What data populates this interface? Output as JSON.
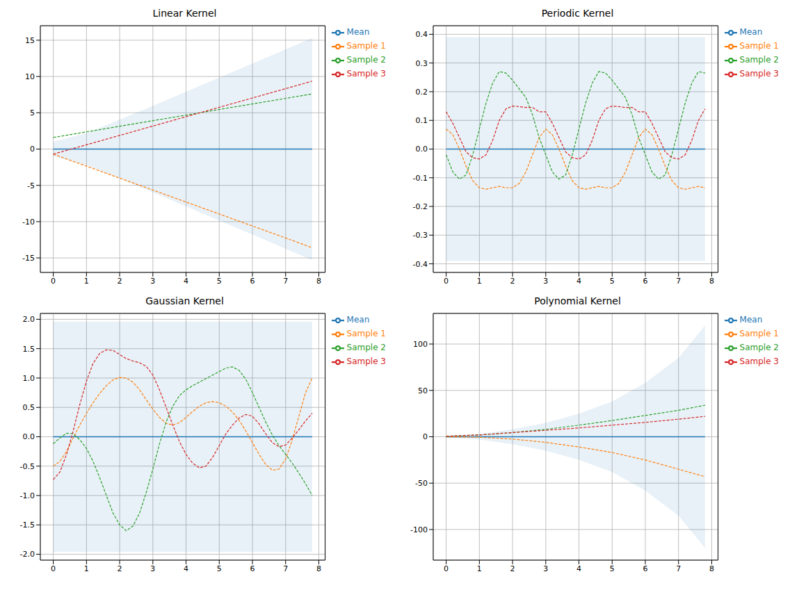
{
  "chart_data": [
    {
      "type": "line",
      "title": "Linear Kernel",
      "grid": true,
      "legend": "upper right",
      "x": [
        0,
        1,
        2,
        3,
        4,
        5,
        6,
        7,
        7.8
      ],
      "xlim": [
        -0.39,
        8.19
      ],
      "xticks": [
        0,
        1,
        2,
        3,
        4,
        5,
        6,
        7,
        8
      ],
      "ylim": [
        -17,
        17
      ],
      "yticks": [
        -15,
        -10,
        -5,
        0,
        5,
        10,
        15
      ],
      "band_lower": [
        -1.0,
        -2.2,
        -4.04,
        -5.96,
        -7.89,
        -9.84,
        -11.79,
        -13.74,
        -15.3
      ],
      "band_upper": [
        1.0,
        2.2,
        4.04,
        5.96,
        7.89,
        9.84,
        11.79,
        13.74,
        15.3
      ],
      "band_color": "#1f77b4",
      "series": [
        {
          "name": "Mean",
          "color": "#1f77b4",
          "line_style": "solid",
          "values": [
            0,
            0,
            0,
            0,
            0,
            0,
            0,
            0,
            0
          ]
        },
        {
          "name": "Sample 1",
          "color": "#ff7f0e",
          "line_style": "dashed",
          "values": [
            -0.7,
            -2.35,
            -4.0,
            -5.65,
            -7.3,
            -8.95,
            -10.6,
            -12.25,
            -13.6
          ]
        },
        {
          "name": "Sample 2",
          "color": "#2ca02c",
          "line_style": "dashed",
          "values": [
            1.6,
            2.37,
            3.14,
            3.91,
            4.68,
            5.45,
            6.22,
            6.99,
            7.6
          ]
        },
        {
          "name": "Sample 3",
          "color": "#d62728",
          "line_style": "dashed",
          "values": [
            -0.7,
            0.59,
            1.88,
            3.17,
            4.46,
            5.75,
            7.04,
            8.33,
            9.36
          ]
        }
      ]
    },
    {
      "type": "line",
      "title": "Periodic Kernel",
      "grid": true,
      "legend": "upper right",
      "x": [
        0,
        0.2,
        0.4,
        0.6,
        0.8,
        1.0,
        1.2,
        1.4,
        1.6,
        1.8,
        2.0,
        2.2,
        2.4,
        2.6,
        2.8,
        3.0,
        3.2,
        3.4,
        3.6,
        3.8,
        4.0,
        4.2,
        4.4,
        4.6,
        4.8,
        5.0,
        5.2,
        5.4,
        5.6,
        5.8,
        6.0,
        6.2,
        6.4,
        6.6,
        6.8,
        7.0,
        7.2,
        7.4,
        7.6,
        7.8
      ],
      "xlim": [
        -0.39,
        8.19
      ],
      "xticks": [
        0,
        1,
        2,
        3,
        4,
        5,
        6,
        7,
        8
      ],
      "ylim": [
        -0.43,
        0.43
      ],
      "yticks": [
        -0.4,
        -0.3,
        -0.2,
        -0.1,
        {
          "value": 0,
          "label": "0.0"
        },
        0.1,
        0.2,
        0.3,
        0.4
      ],
      "band_lower": [
        -0.39,
        -0.39,
        -0.39,
        -0.39,
        -0.39,
        -0.39,
        -0.39,
        -0.39,
        -0.39,
        -0.39,
        -0.39,
        -0.39,
        -0.39,
        -0.39,
        -0.39,
        -0.39,
        -0.39,
        -0.39,
        -0.39,
        -0.39,
        -0.39,
        -0.39,
        -0.39,
        -0.39,
        -0.39,
        -0.39,
        -0.39,
        -0.39,
        -0.39,
        -0.39,
        -0.39,
        -0.39,
        -0.39,
        -0.39,
        -0.39,
        -0.39,
        -0.39,
        -0.39,
        -0.39,
        -0.39
      ],
      "band_upper": [
        0.39,
        0.39,
        0.39,
        0.39,
        0.39,
        0.39,
        0.39,
        0.39,
        0.39,
        0.39,
        0.39,
        0.39,
        0.39,
        0.39,
        0.39,
        0.39,
        0.39,
        0.39,
        0.39,
        0.39,
        0.39,
        0.39,
        0.39,
        0.39,
        0.39,
        0.39,
        0.39,
        0.39,
        0.39,
        0.39,
        0.39,
        0.39,
        0.39,
        0.39,
        0.39,
        0.39,
        0.39,
        0.39,
        0.39,
        0.39
      ],
      "band_color": "#1f77b4",
      "series": [
        {
          "name": "Mean",
          "color": "#1f77b4",
          "line_style": "solid",
          "values": [
            0,
            0,
            0,
            0,
            0,
            0,
            0,
            0,
            0,
            0,
            0,
            0,
            0,
            0,
            0,
            0,
            0,
            0,
            0,
            0,
            0,
            0,
            0,
            0,
            0,
            0,
            0,
            0,
            0,
            0,
            0,
            0,
            0,
            0,
            0,
            0,
            0,
            0,
            0,
            0
          ]
        },
        {
          "name": "Sample 1",
          "color": "#ff7f0e",
          "line_style": "dashed",
          "values": [
            0.07,
            0.05,
            0.0,
            -0.06,
            -0.11,
            -0.135,
            -0.14,
            -0.135,
            -0.13,
            -0.135,
            -0.135,
            -0.12,
            -0.08,
            -0.02,
            0.04,
            0.07,
            0.05,
            0.0,
            -0.06,
            -0.11,
            -0.135,
            -0.14,
            -0.135,
            -0.13,
            -0.135,
            -0.135,
            -0.12,
            -0.08,
            -0.02,
            0.04,
            0.07,
            0.05,
            0.0,
            -0.06,
            -0.11,
            -0.135,
            -0.14,
            -0.135,
            -0.13,
            -0.135
          ]
        },
        {
          "name": "Sample 2",
          "color": "#2ca02c",
          "line_style": "dashed",
          "values": [
            -0.02,
            -0.08,
            -0.105,
            -0.09,
            -0.02,
            0.07,
            0.16,
            0.23,
            0.27,
            0.265,
            0.24,
            0.21,
            0.18,
            0.12,
            0.04,
            -0.02,
            -0.08,
            -0.105,
            -0.09,
            -0.02,
            0.07,
            0.16,
            0.23,
            0.27,
            0.265,
            0.24,
            0.21,
            0.18,
            0.12,
            0.04,
            -0.02,
            -0.08,
            -0.105,
            -0.09,
            -0.02,
            0.07,
            0.16,
            0.23,
            0.27,
            0.265
          ]
        },
        {
          "name": "Sample 3",
          "color": "#d62728",
          "line_style": "dashed",
          "values": [
            0.13,
            0.09,
            0.04,
            -0.01,
            -0.03,
            -0.035,
            -0.02,
            0.03,
            0.1,
            0.14,
            0.15,
            0.148,
            0.145,
            0.145,
            0.13,
            0.13,
            0.09,
            0.04,
            -0.01,
            -0.03,
            -0.035,
            -0.02,
            0.03,
            0.1,
            0.14,
            0.15,
            0.148,
            0.145,
            0.145,
            0.13,
            0.13,
            0.09,
            0.04,
            -0.01,
            -0.03,
            -0.035,
            -0.02,
            0.03,
            0.1,
            0.14
          ]
        }
      ]
    },
    {
      "type": "line",
      "title": "Gaussian Kernel",
      "grid": true,
      "legend": "upper right",
      "x": [
        0,
        0.2,
        0.4,
        0.6,
        0.8,
        1.0,
        1.2,
        1.4,
        1.6,
        1.8,
        2.0,
        2.2,
        2.4,
        2.6,
        2.8,
        3.0,
        3.2,
        3.4,
        3.6,
        3.8,
        4.0,
        4.2,
        4.4,
        4.6,
        4.8,
        5.0,
        5.2,
        5.4,
        5.6,
        5.8,
        6.0,
        6.2,
        6.4,
        6.6,
        6.8,
        7.0,
        7.2,
        7.4,
        7.6,
        7.8
      ],
      "xlim": [
        -0.39,
        8.19
      ],
      "xticks": [
        0,
        1,
        2,
        3,
        4,
        5,
        6,
        7,
        8
      ],
      "ylim": [
        -2.1,
        2.1
      ],
      "yticks": [
        {
          "value": -2,
          "label": "-2.0"
        },
        -1.5,
        {
          "value": -1,
          "label": "-1.0"
        },
        -0.5,
        {
          "value": 0,
          "label": "0.0"
        },
        0.5,
        {
          "value": 1,
          "label": "1.0"
        },
        1.5,
        {
          "value": 2,
          "label": "2.0"
        }
      ],
      "band_lower": [
        -1.96,
        -1.96,
        -1.96,
        -1.96,
        -1.96,
        -1.96,
        -1.96,
        -1.96,
        -1.96,
        -1.96,
        -1.96,
        -1.96,
        -1.96,
        -1.96,
        -1.96,
        -1.96,
        -1.96,
        -1.96,
        -1.96,
        -1.96,
        -1.96,
        -1.96,
        -1.96,
        -1.96,
        -1.96,
        -1.96,
        -1.96,
        -1.96,
        -1.96,
        -1.96,
        -1.96,
        -1.96,
        -1.96,
        -1.96,
        -1.96,
        -1.96,
        -1.96,
        -1.96,
        -1.96,
        -1.96
      ],
      "band_upper": [
        1.96,
        1.96,
        1.96,
        1.96,
        1.96,
        1.96,
        1.96,
        1.96,
        1.96,
        1.96,
        1.96,
        1.96,
        1.96,
        1.96,
        1.96,
        1.96,
        1.96,
        1.96,
        1.96,
        1.96,
        1.96,
        1.96,
        1.96,
        1.96,
        1.96,
        1.96,
        1.96,
        1.96,
        1.96,
        1.96,
        1.96,
        1.96,
        1.96,
        1.96,
        1.96,
        1.96,
        1.96,
        1.96,
        1.96,
        1.96
      ],
      "band_color": "#1f77b4",
      "series": [
        {
          "name": "Mean",
          "color": "#1f77b4",
          "line_style": "solid",
          "values": [
            0,
            0,
            0,
            0,
            0,
            0,
            0,
            0,
            0,
            0,
            0,
            0,
            0,
            0,
            0,
            0,
            0,
            0,
            0,
            0,
            0,
            0,
            0,
            0,
            0,
            0,
            0,
            0,
            0,
            0,
            0,
            0,
            0,
            0,
            0,
            0,
            0,
            0,
            0,
            0
          ]
        },
        {
          "name": "Sample 1",
          "color": "#ff7f0e",
          "line_style": "dashed",
          "values": [
            -0.5,
            -0.42,
            -0.25,
            -0.02,
            0.2,
            0.4,
            0.58,
            0.74,
            0.87,
            0.97,
            1.01,
            1.0,
            0.93,
            0.8,
            0.63,
            0.47,
            0.33,
            0.23,
            0.2,
            0.24,
            0.33,
            0.43,
            0.52,
            0.58,
            0.6,
            0.58,
            0.52,
            0.42,
            0.28,
            0.1,
            -0.1,
            -0.3,
            -0.47,
            -0.57,
            -0.55,
            -0.38,
            -0.05,
            0.35,
            0.75,
            1.0
          ]
        },
        {
          "name": "Sample 2",
          "color": "#2ca02c",
          "line_style": "dashed",
          "values": [
            -0.12,
            -0.02,
            0.06,
            0.05,
            -0.05,
            -0.2,
            -0.42,
            -0.7,
            -1.0,
            -1.3,
            -1.5,
            -1.6,
            -1.52,
            -1.3,
            -0.95,
            -0.55,
            -0.12,
            0.25,
            0.52,
            0.7,
            0.8,
            0.87,
            0.93,
            0.99,
            1.05,
            1.11,
            1.17,
            1.19,
            1.13,
            0.98,
            0.75,
            0.5,
            0.25,
            0.03,
            -0.15,
            -0.3,
            -0.45,
            -0.62,
            -0.8,
            -1.0
          ]
        },
        {
          "name": "Sample 3",
          "color": "#d62728",
          "line_style": "dashed",
          "values": [
            -0.73,
            -0.6,
            -0.3,
            0.1,
            0.55,
            0.95,
            1.25,
            1.42,
            1.48,
            1.47,
            1.4,
            1.33,
            1.29,
            1.26,
            1.2,
            1.05,
            0.8,
            0.5,
            0.2,
            -0.08,
            -0.3,
            -0.45,
            -0.53,
            -0.5,
            -0.35,
            -0.15,
            0.05,
            0.2,
            0.32,
            0.38,
            0.35,
            0.22,
            0.05,
            -0.1,
            -0.17,
            -0.14,
            -0.02,
            0.12,
            0.27,
            0.4
          ]
        }
      ]
    },
    {
      "type": "line",
      "title": "Polynomial Kernel",
      "grid": true,
      "legend": "upper right",
      "x": [
        0,
        1,
        2,
        3,
        4,
        5,
        6,
        7,
        7.8
      ],
      "xlim": [
        -0.39,
        8.19
      ],
      "xticks": [
        0,
        1,
        2,
        3,
        4,
        5,
        6,
        7,
        8
      ],
      "ylim": [
        -133,
        133
      ],
      "yticks": [
        -100,
        -50,
        0,
        50,
        100
      ],
      "band_lower": [
        -1,
        -3,
        -8,
        -15,
        -25,
        -38,
        -58,
        -85,
        -120
      ],
      "band_upper": [
        1,
        3,
        8,
        15,
        25,
        38,
        58,
        85,
        120
      ],
      "band_color": "#1f77b4",
      "series": [
        {
          "name": "Mean",
          "color": "#1f77b4",
          "line_style": "solid",
          "values": [
            0,
            0,
            0,
            0,
            0,
            0,
            0,
            0,
            0
          ]
        },
        {
          "name": "Sample 1",
          "color": "#ff7f0e",
          "line_style": "dashed",
          "values": [
            0,
            -0.5,
            -2.5,
            -6,
            -11,
            -17,
            -25,
            -35,
            -43
          ]
        },
        {
          "name": "Sample 2",
          "color": "#2ca02c",
          "line_style": "dashed",
          "values": [
            0.5,
            2,
            4.5,
            8,
            12.5,
            17.5,
            23,
            28.5,
            34
          ]
        },
        {
          "name": "Sample 3",
          "color": "#d62728",
          "line_style": "dashed",
          "values": [
            0.5,
            2,
            4.5,
            7,
            9.5,
            12.5,
            15.5,
            19,
            22
          ]
        }
      ]
    }
  ]
}
